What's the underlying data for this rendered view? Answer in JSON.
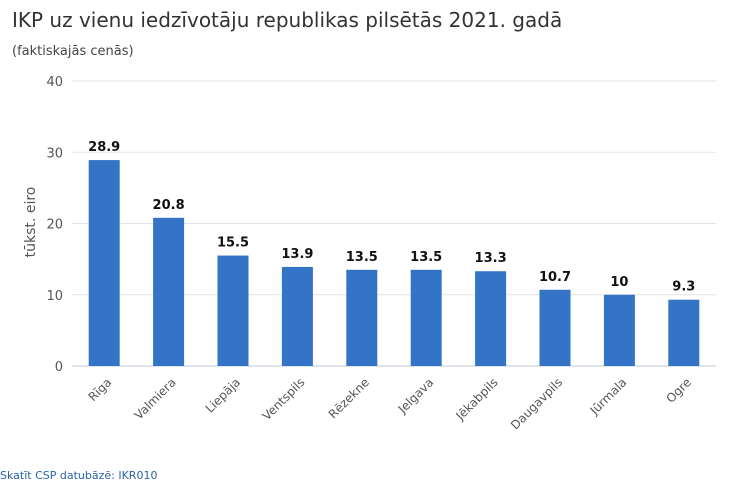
{
  "chart_data": {
    "type": "bar",
    "title": "IKP uz vienu iedzīvotāju republikas pilsētās 2021. gadā",
    "subtitle": "(faktiskajās cenās)",
    "ylabel": "tūkst. eiro",
    "xlabel": "",
    "categories": [
      "Rīga",
      "Valmiera",
      "Liepāja",
      "Ventspils",
      "Rēzekne",
      "Jelgava",
      "Jēkabpils",
      "Daugavpils",
      "Jūrmala",
      "Ogre"
    ],
    "values": [
      28.9,
      20.8,
      15.5,
      13.9,
      13.5,
      13.5,
      13.3,
      10.7,
      10,
      9.3
    ],
    "data_labels": [
      "28.9",
      "20.8",
      "15.5",
      "13.9",
      "13.5",
      "13.5",
      "13.3",
      "10.7",
      "10",
      "9.3"
    ],
    "ylim": [
      0,
      40
    ],
    "yticks": [
      0,
      10,
      20,
      30,
      40
    ],
    "grid": true,
    "legend": "none",
    "bar_color": "#3374c6"
  },
  "footer": {
    "source_link": "Skatīt CSP datubāzē: IKR010"
  }
}
